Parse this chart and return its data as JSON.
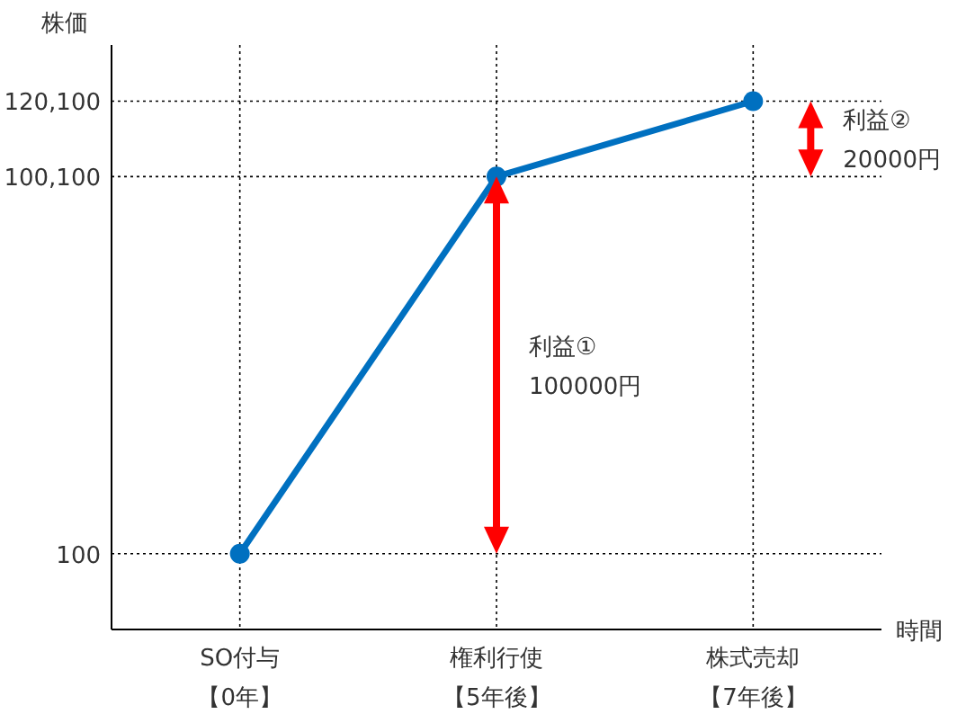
{
  "chart_data": {
    "type": "line",
    "ylabel": "株価",
    "xlabel": "時間",
    "categories": [
      "SO付与【0年】",
      "権利行使【5年後】",
      "株式売却【7年後】"
    ],
    "series": [
      {
        "color": "#0070c0",
        "values": [
          100,
          100100,
          120100
        ]
      }
    ],
    "ylim": [
      -20000,
      135000
    ],
    "yticks": [
      {
        "value": 100,
        "label": "100"
      },
      {
        "value": 100100,
        "label": "100,100"
      },
      {
        "value": 120100,
        "label": "120,100"
      }
    ],
    "grid": true,
    "marker": "circle",
    "line_style": "solid",
    "annotations": [
      "利益①\n100000円",
      "利益②\n20000円"
    ]
  }
}
